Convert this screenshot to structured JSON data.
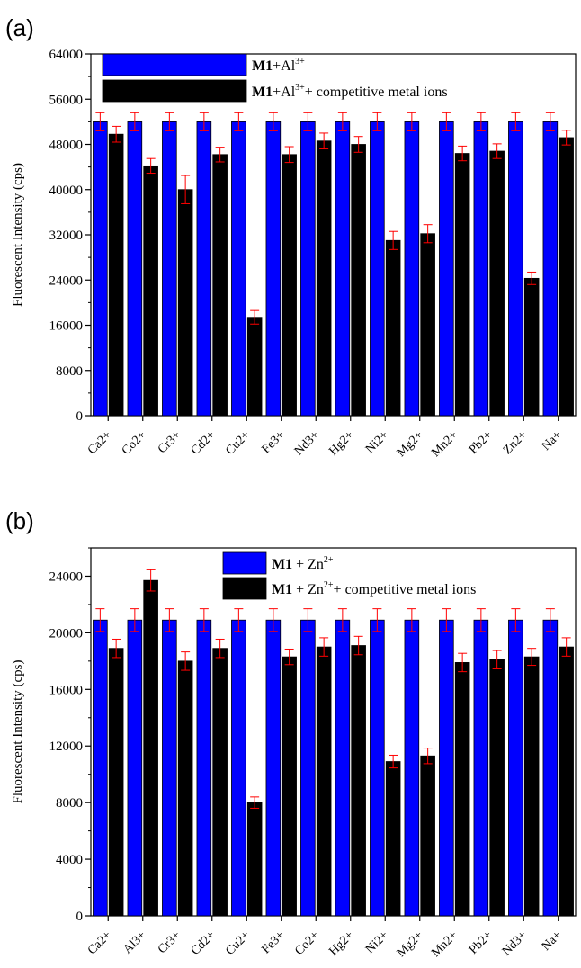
{
  "colors": {
    "blue_bar": "#0000ff",
    "black_bar": "#000000",
    "error_bar": "#ff0000"
  },
  "chart_data": [
    {
      "type": "bar",
      "panel_label": "(a)",
      "ylabel": "Fluorescent Intensity (cps)",
      "xlabel": "",
      "ylim": [
        0,
        64000
      ],
      "yticks": [
        "0",
        "8000",
        "16000",
        "24000",
        "32000",
        "40000",
        "48000",
        "56000",
        "64000"
      ],
      "categories": [
        "Ca2+",
        "Co2+",
        "Cr3+",
        "Cd2+",
        "Cu2+",
        "Fe3+",
        "Nd3+",
        "Hg2+",
        "Ni2+",
        "Mg2+",
        "Mn2+",
        "Pb2+",
        "Zn2+",
        "Na+"
      ],
      "legend": {
        "placement": "top-left",
        "entries": [
          {
            "bold": "M1",
            "text": "+Al",
            "sup": "3+",
            "suffix": ""
          },
          {
            "bold": "M1",
            "text": "+Al",
            "sup": "3+",
            "suffix": "+ competitive metal ions"
          }
        ]
      },
      "series": [
        {
          "values": [
            52000,
            52000,
            52000,
            52000,
            52000,
            52000,
            52000,
            52000,
            52000,
            52000,
            52000,
            52000,
            52000,
            52000
          ],
          "errors": [
            1600,
            1600,
            1600,
            1600,
            1600,
            1600,
            1600,
            1600,
            1600,
            1600,
            1600,
            1600,
            1600,
            1600
          ]
        },
        {
          "values": [
            49800,
            44200,
            40000,
            46200,
            17400,
            46200,
            48600,
            48000,
            31000,
            32200,
            46400,
            46800,
            24300,
            49200
          ],
          "errors": [
            1400,
            1300,
            2500,
            1300,
            1200,
            1400,
            1400,
            1400,
            1600,
            1600,
            1300,
            1300,
            1100,
            1300
          ]
        }
      ]
    },
    {
      "type": "bar",
      "panel_label": "(b)",
      "ylabel": "Fluorescent Intensity (cps)",
      "xlabel": "",
      "ylim": [
        0,
        26000
      ],
      "yticks": [
        "0",
        "4000",
        "8000",
        "12000",
        "16000",
        "20000",
        "24000"
      ],
      "categories": [
        "Ca2+",
        "Al3+",
        "Cr3+",
        "Cd2+",
        "Cu2+",
        "Fe3+",
        "Co2+",
        "Hg2+",
        "Ni2+",
        "Mg2+",
        "Mn2+",
        "Pb2+",
        "Nd3+",
        "Na+"
      ],
      "legend": {
        "placement": "top-center",
        "entries": [
          {
            "bold": "M1",
            "text": " + Zn",
            "sup": "2+",
            "suffix": ""
          },
          {
            "bold": "M1",
            "text": " + Zn",
            "sup": "2+",
            "suffix": "+ competitive metal ions"
          }
        ]
      },
      "series": [
        {
          "values": [
            20900,
            20900,
            20900,
            20900,
            20900,
            20900,
            20900,
            20900,
            20900,
            20900,
            20900,
            20900,
            20900,
            20900
          ],
          "errors": [
            800,
            800,
            800,
            800,
            800,
            800,
            800,
            800,
            800,
            800,
            800,
            800,
            800,
            800
          ]
        },
        {
          "values": [
            18900,
            23700,
            18000,
            18900,
            8000,
            18300,
            19000,
            19100,
            10900,
            11300,
            17900,
            18100,
            18300,
            19000
          ],
          "errors": [
            650,
            750,
            650,
            650,
            400,
            550,
            650,
            650,
            450,
            550,
            650,
            650,
            600,
            650
          ]
        }
      ]
    }
  ]
}
